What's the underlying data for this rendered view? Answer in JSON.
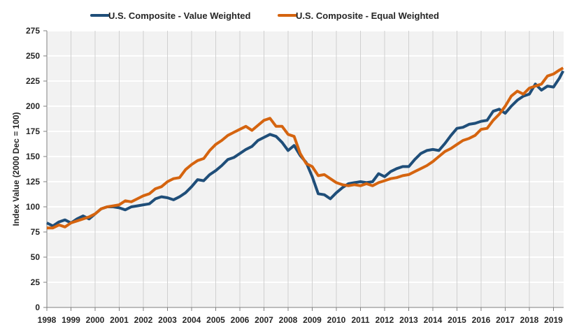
{
  "chart_data": {
    "type": "line",
    "title": "",
    "xlabel": "",
    "ylabel": "Index Value (2000 Dec = 100)",
    "ylim": [
      0,
      275
    ],
    "yticks": [
      0,
      25,
      50,
      75,
      100,
      125,
      150,
      175,
      200,
      225,
      250,
      275
    ],
    "xlim": [
      1998,
      2019.4
    ],
    "xticks": [
      "1998",
      "1999",
      "2000",
      "2001",
      "2002",
      "2003",
      "2004",
      "2005",
      "2006",
      "2007",
      "2008",
      "2009",
      "2010",
      "2011",
      "2012",
      "2013",
      "2014",
      "2015",
      "2016",
      "2017",
      "2018",
      "2019"
    ],
    "grid": true,
    "legend": "top",
    "x": [
      1998.0,
      1998.25,
      1998.5,
      1998.75,
      1999.0,
      1999.25,
      1999.5,
      1999.75,
      2000.0,
      2000.25,
      2000.5,
      2000.75,
      2001.0,
      2001.25,
      2001.5,
      2001.75,
      2002.0,
      2002.25,
      2002.5,
      2002.75,
      2003.0,
      2003.25,
      2003.5,
      2003.75,
      2004.0,
      2004.25,
      2004.5,
      2004.75,
      2005.0,
      2005.25,
      2005.5,
      2005.75,
      2006.0,
      2006.25,
      2006.5,
      2006.75,
      2007.0,
      2007.25,
      2007.5,
      2007.75,
      2008.0,
      2008.25,
      2008.5,
      2008.75,
      2009.0,
      2009.25,
      2009.5,
      2009.75,
      2010.0,
      2010.25,
      2010.5,
      2010.75,
      2011.0,
      2011.25,
      2011.5,
      2011.75,
      2012.0,
      2012.25,
      2012.5,
      2012.75,
      2013.0,
      2013.25,
      2013.5,
      2013.75,
      2014.0,
      2014.25,
      2014.5,
      2014.75,
      2015.0,
      2015.25,
      2015.5,
      2015.75,
      2016.0,
      2016.25,
      2016.5,
      2016.75,
      2017.0,
      2017.25,
      2017.5,
      2017.75,
      2018.0,
      2018.25,
      2018.5,
      2018.75,
      2019.0,
      2019.25,
      2019.4
    ],
    "series": [
      {
        "name": "U.S. Composite - Value Weighted",
        "color": "#1F4E79",
        "values": [
          84,
          81,
          85,
          87,
          84,
          88,
          91,
          88,
          93,
          98,
          100,
          100,
          99,
          97,
          100,
          101,
          102,
          103,
          108,
          110,
          109,
          107,
          110,
          114,
          120,
          127,
          126,
          132,
          136,
          141,
          147,
          149,
          153,
          157,
          160,
          166,
          169,
          172,
          170,
          164,
          156,
          161,
          151,
          144,
          130,
          113,
          112,
          108,
          114,
          119,
          123,
          124,
          125,
          124,
          125,
          133,
          130,
          135,
          138,
          140,
          140,
          147,
          153,
          156,
          157,
          156,
          163,
          171,
          178,
          179,
          182,
          183,
          185,
          186,
          195,
          197,
          193,
          200,
          206,
          210,
          212,
          222,
          216,
          220,
          219,
          228,
          235
        ]
      },
      {
        "name": "U.S. Composite - Equal Weighted",
        "color": "#D5640F",
        "values": [
          79,
          79,
          82,
          80,
          84,
          86,
          88,
          90,
          93,
          98,
          100,
          101,
          102,
          106,
          105,
          108,
          111,
          113,
          118,
          120,
          125,
          128,
          129,
          137,
          142,
          146,
          148,
          156,
          162,
          166,
          171,
          174,
          177,
          180,
          176,
          181,
          186,
          188,
          180,
          180,
          172,
          170,
          153,
          143,
          140,
          131,
          132,
          128,
          124,
          122,
          121,
          122,
          121,
          123,
          121,
          124,
          126,
          128,
          129,
          131,
          132,
          135,
          138,
          141,
          145,
          150,
          155,
          158,
          162,
          166,
          168,
          171,
          177,
          178,
          186,
          192,
          200,
          210,
          215,
          212,
          218,
          220,
          222,
          230,
          232,
          236,
          238
        ]
      }
    ]
  }
}
